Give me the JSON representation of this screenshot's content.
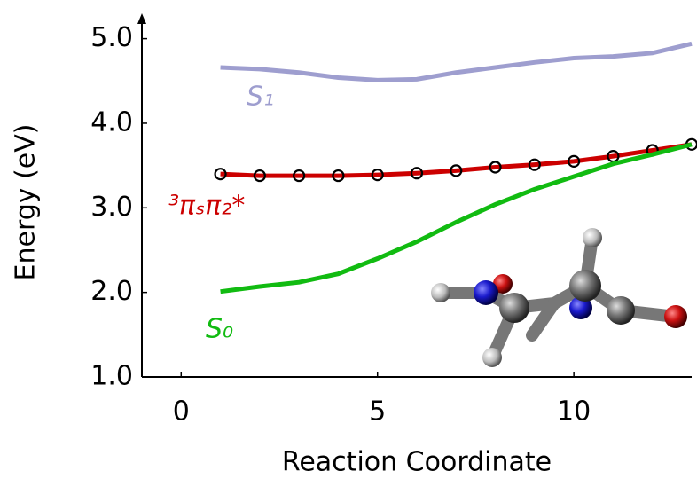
{
  "chart_data": {
    "type": "line",
    "x_label": "Reaction Coordinate",
    "y_label": "Energy (eV)",
    "x": [
      1,
      2,
      3,
      4,
      5,
      6,
      7,
      8,
      9,
      10,
      11,
      12,
      13
    ],
    "series": [
      {
        "name": "S₁",
        "color": "#9e9ecf",
        "markers": false,
        "values": [
          4.66,
          4.64,
          4.6,
          4.54,
          4.51,
          4.52,
          4.6,
          4.66,
          4.72,
          4.77,
          4.79,
          4.83,
          4.94
        ]
      },
      {
        "name": "³πₛπ₂*",
        "color": "#cc0000",
        "markers": true,
        "values": [
          3.4,
          3.38,
          3.38,
          3.38,
          3.39,
          3.41,
          3.44,
          3.48,
          3.51,
          3.55,
          3.61,
          3.68,
          3.75
        ]
      },
      {
        "name": "S₀",
        "color": "#11bb11",
        "markers": false,
        "values": [
          2.01,
          2.07,
          2.12,
          2.22,
          2.4,
          2.6,
          2.83,
          3.04,
          3.22,
          3.37,
          3.52,
          3.63,
          3.75
        ]
      }
    ],
    "xlim": [
      -1,
      13
    ],
    "xticks": [
      0,
      5,
      10
    ],
    "ylim": [
      1,
      5.3
    ],
    "yticks": [
      {
        "value": 1,
        "label": "1.0"
      },
      {
        "value": 2,
        "label": "2.0"
      },
      {
        "value": 3,
        "label": "3.0"
      },
      {
        "value": 4,
        "label": "4.0"
      },
      {
        "value": 5,
        "label": "5.0"
      }
    ],
    "grid": false
  }
}
